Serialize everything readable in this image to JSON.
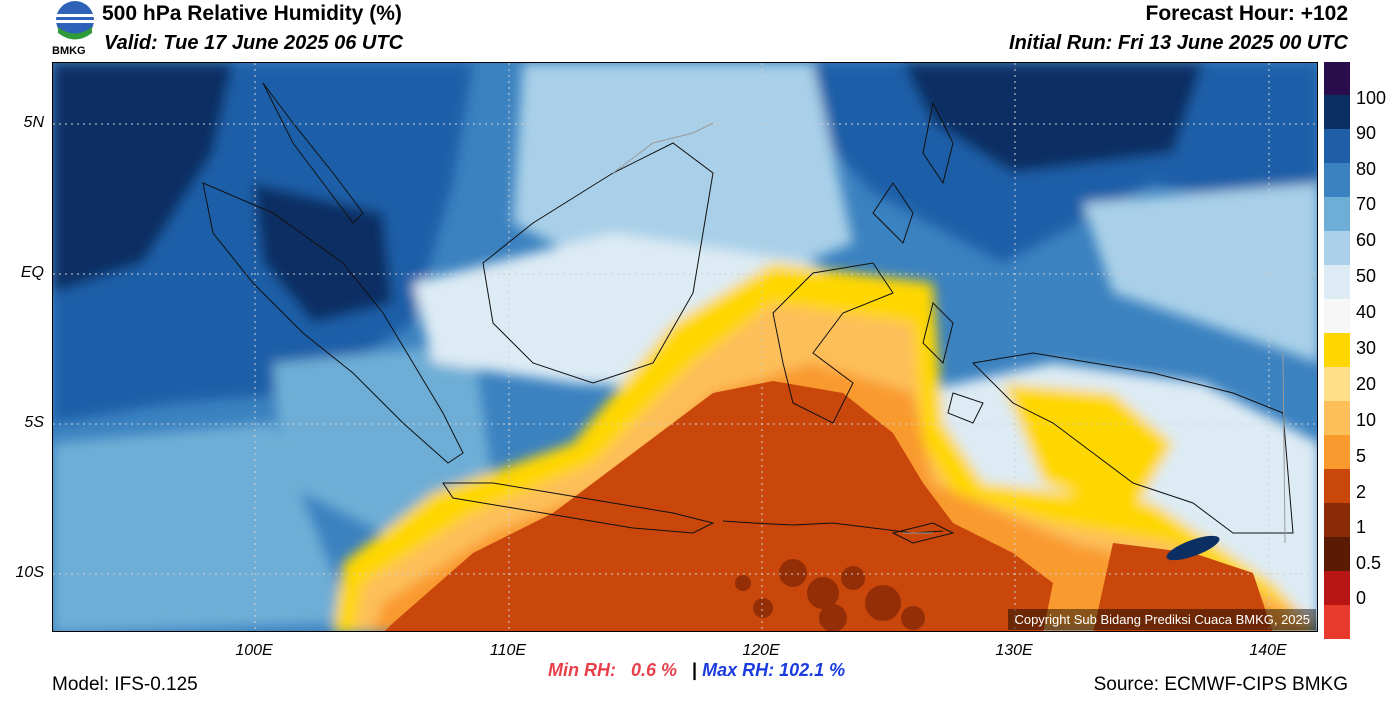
{
  "header": {
    "title": "500 hPa Relative Humidity (%)",
    "valid": "Valid: Tue 17 June 2025 06 UTC",
    "forecast_hour": "Forecast Hour: +102",
    "initial_run": "Initial Run: Fri 13 June 2025 00 UTC",
    "logo_text": "BMKG"
  },
  "map": {
    "lat_labels": [
      "5N",
      "EQ",
      "5S",
      "10S"
    ],
    "lon_labels": [
      "100E",
      "110E",
      "120E",
      "130E",
      "140E"
    ],
    "copyright": "Copyright Sub Bidang Prediksi Cuaca BMKG, 2025"
  },
  "colorbar": {
    "labels": [
      "100",
      "90",
      "80",
      "70",
      "60",
      "50",
      "40",
      "30",
      "20",
      "10",
      "5",
      "2",
      "1",
      "0.5",
      "0"
    ],
    "colors": [
      "#2a0d4d",
      "#0b2f63",
      "#1f5fa8",
      "#3b82c0",
      "#6eaed6",
      "#a9d0e8",
      "#ddebf4",
      "#f7f7f7",
      "#ffd700",
      "#ffe08a",
      "#fdbf5a",
      "#f99a2e",
      "#c9470a",
      "#8a2a06",
      "#5a1a03",
      "#b81515",
      "#e83a2c"
    ]
  },
  "footer": {
    "min_label": "Min RH:",
    "min_value": "0.6 %",
    "sep": "|",
    "max_label": "Max RH:",
    "max_value": "102.1 %",
    "model": "Model: IFS-0.125",
    "source": "Source: ECMWF-CIPS BMKG"
  }
}
